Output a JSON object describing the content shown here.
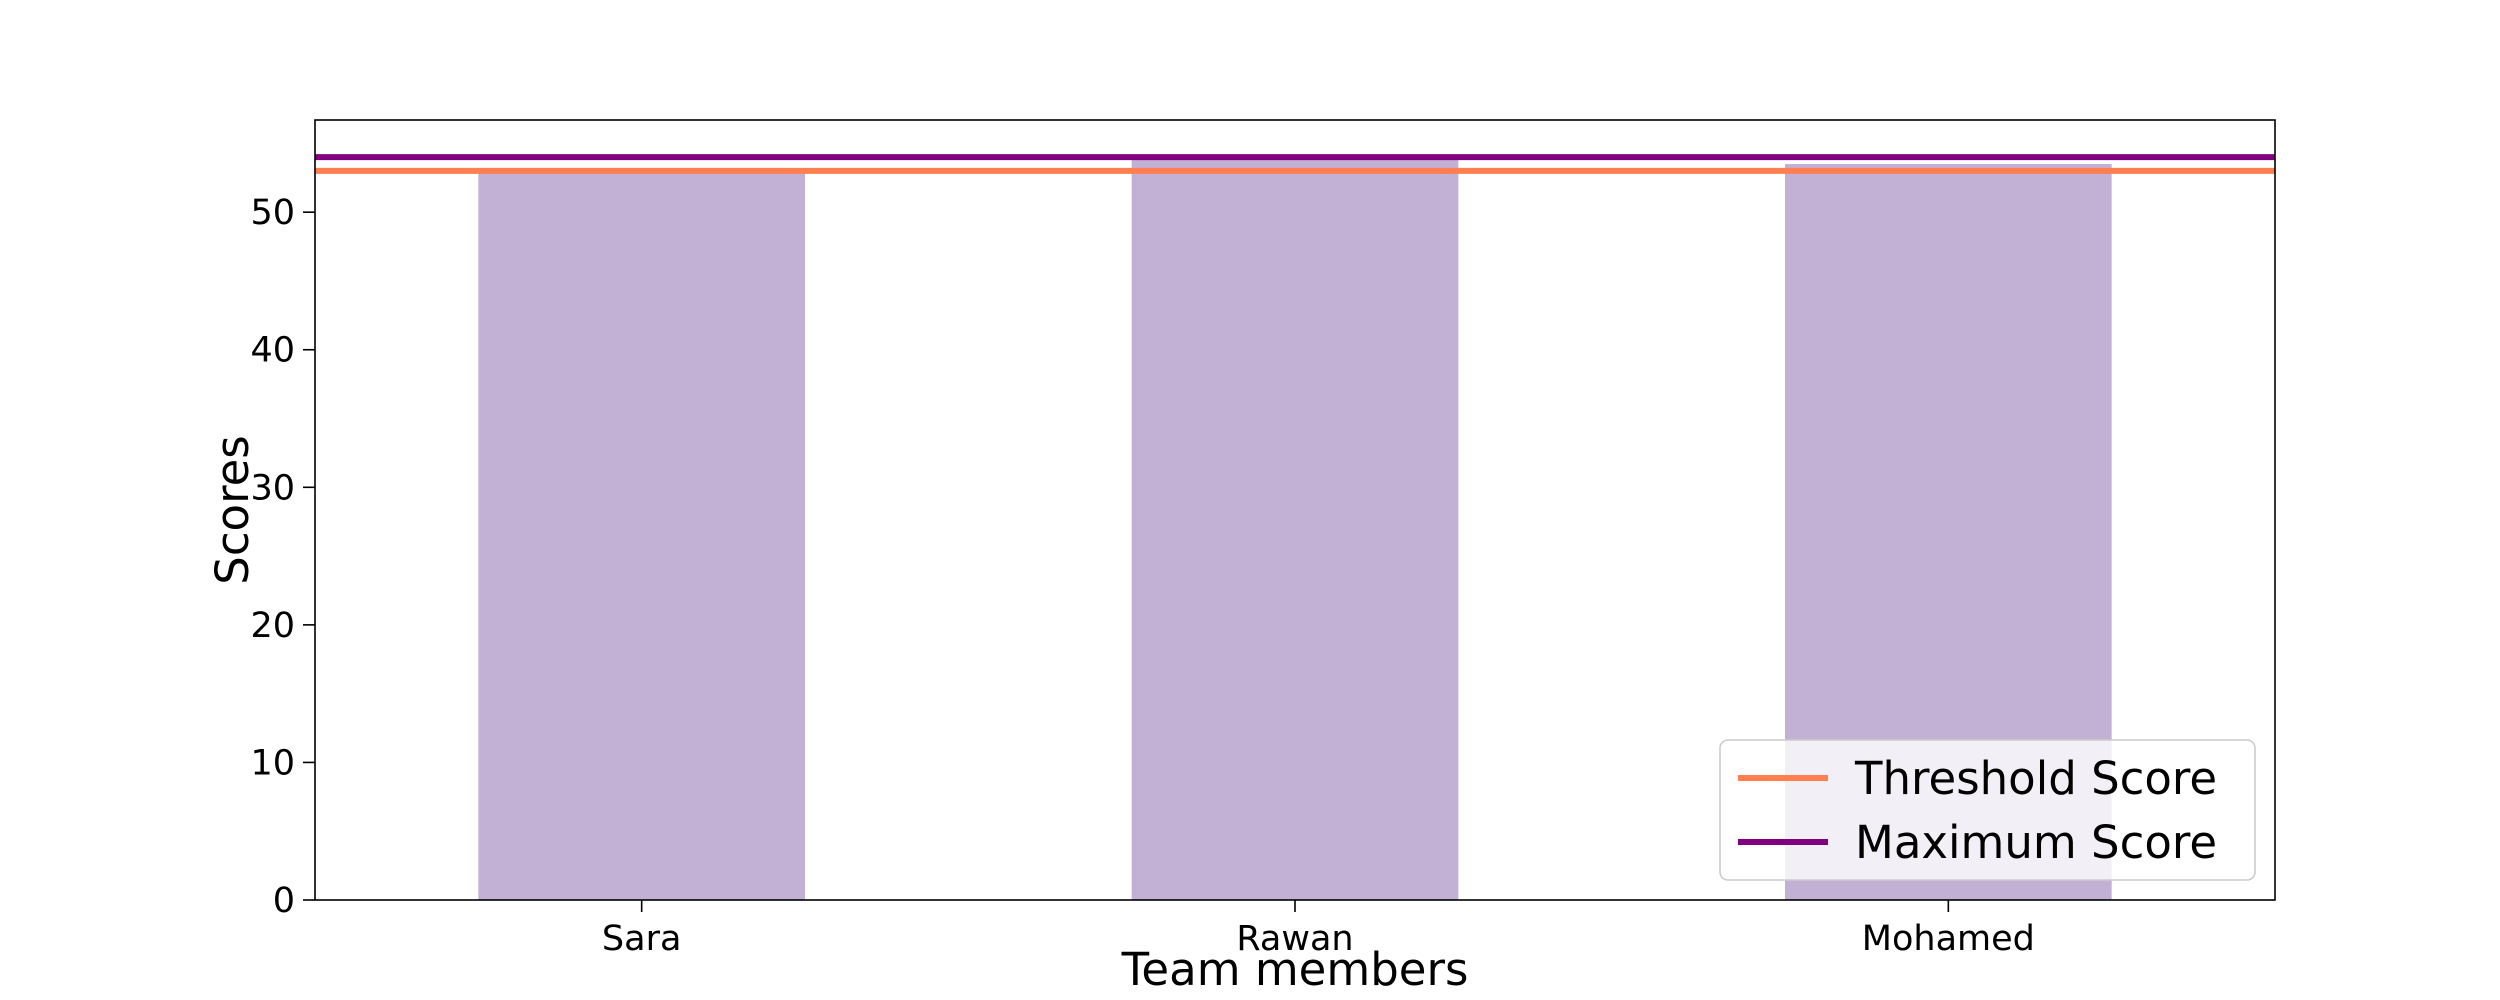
{
  "chart_data": {
    "type": "bar",
    "categories": [
      "Sara",
      "Rawan",
      "Mohamed"
    ],
    "series": [
      {
        "values": [
          53,
          54,
          53.5
        ]
      }
    ],
    "reference_lines": [
      {
        "name": "Threshold Score",
        "value": 53,
        "color": "#ff7f50"
      },
      {
        "name": "Maximum Score",
        "value": 54,
        "color": "#800080"
      }
    ],
    "bar_color": "#c3b0d5",
    "xlabel": "Team members",
    "ylabel": "Scores",
    "ylim": [
      0,
      56.7
    ],
    "yticks": [
      0,
      10,
      20,
      30,
      40,
      50
    ],
    "legend_position": "lower-right",
    "grid": false
  }
}
